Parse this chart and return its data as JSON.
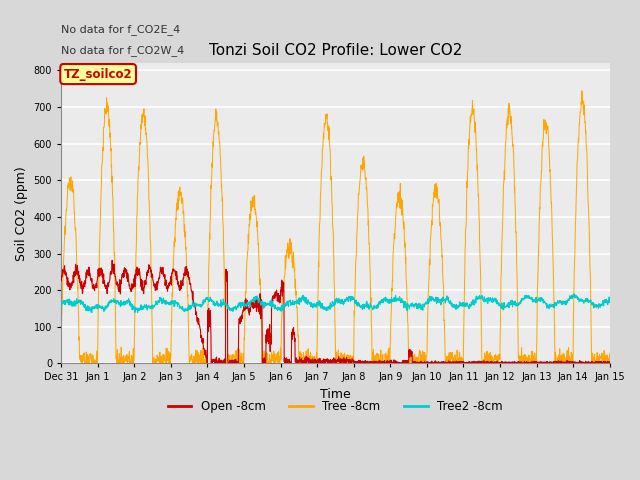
{
  "title": "Tonzi Soil CO2 Profile: Lower CO2",
  "xlabel": "Time",
  "ylabel": "Soil CO2 (ppm)",
  "ylim": [
    0,
    820
  ],
  "yticks": [
    0,
    100,
    200,
    300,
    400,
    500,
    600,
    700,
    800
  ],
  "annotation1": "No data for f_CO2E_4",
  "annotation2": "No data for f_CO2W_4",
  "legend_label": "TZ_soilco2",
  "series_labels": [
    "Open -8cm",
    "Tree -8cm",
    "Tree2 -8cm"
  ],
  "series_colors": [
    "#cc0000",
    "#ffa500",
    "#00cccc"
  ],
  "plot_bg": "#ebebeb",
  "fig_bg": "#d8d8d8",
  "tick_label_size": 7,
  "title_fontsize": 11,
  "axis_label_fontsize": 9,
  "annotation_fontsize": 8
}
